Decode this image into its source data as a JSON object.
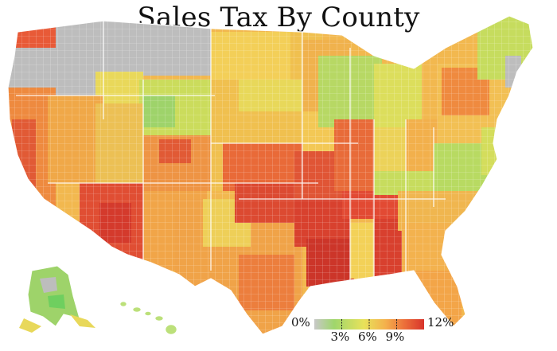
{
  "title": "Sales Tax By County",
  "legend": {
    "min_label": "0%",
    "max_label": "12%",
    "ticks": [
      {
        "value": 3,
        "label": "3%"
      },
      {
        "value": 6,
        "label": "6%"
      },
      {
        "value": 9,
        "label": "9%"
      }
    ],
    "min": 0,
    "max": 12,
    "colors": [
      "#c8c8c8",
      "#8fd46b",
      "#e6e25a",
      "#f4b44e",
      "#ef7a3e",
      "#d8382c"
    ]
  },
  "map": {
    "no_tax_color": "#bdbdbd",
    "border_color": "#ffffff"
  }
}
